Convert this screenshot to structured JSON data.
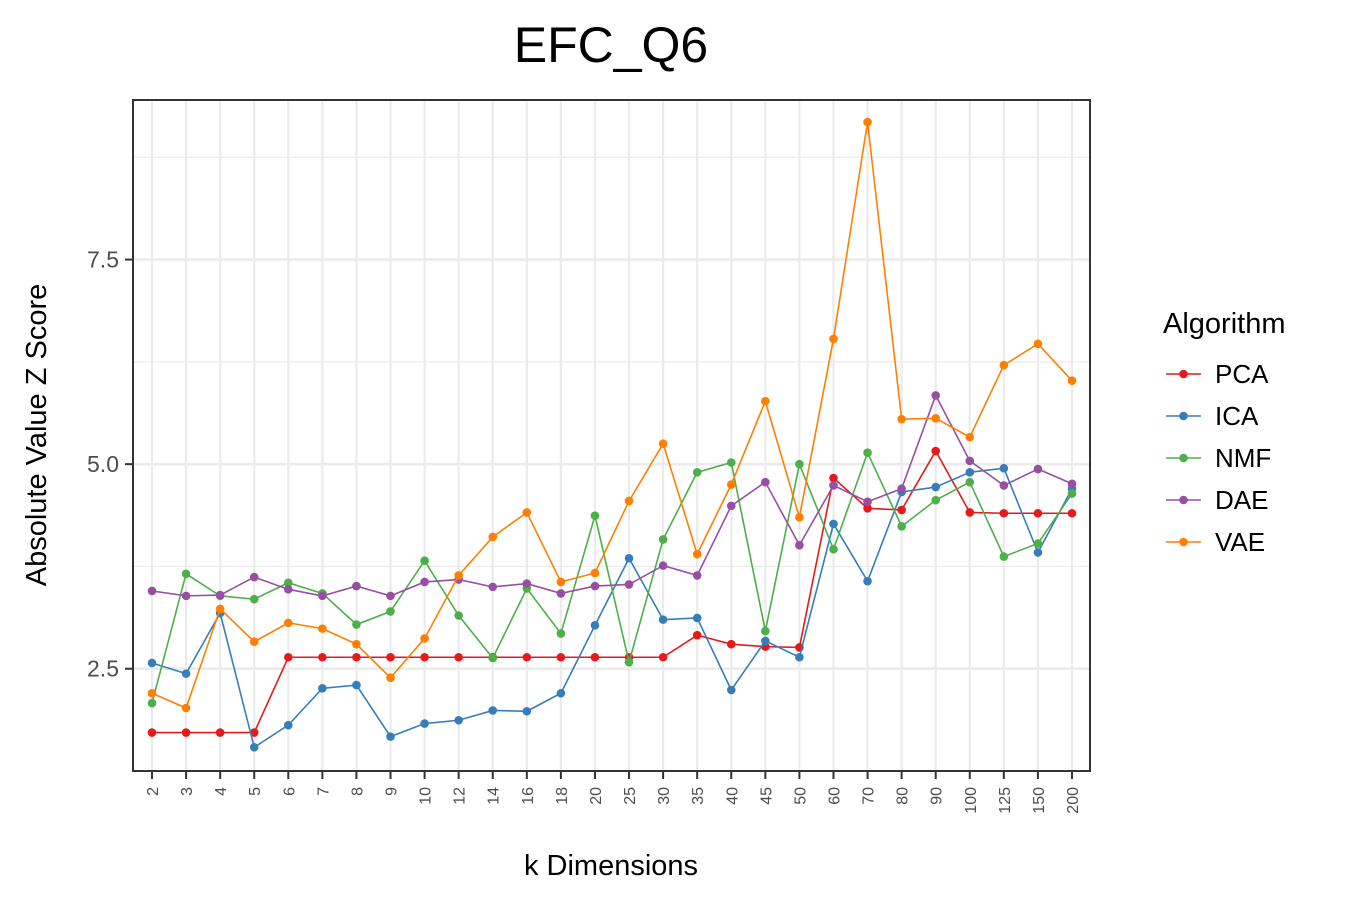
{
  "chart_data": {
    "type": "line",
    "title": "EFC_Q6",
    "xlabel": "k Dimensions",
    "ylabel": "Absolute Value Z Score",
    "categories": [
      "2",
      "3",
      "4",
      "5",
      "6",
      "7",
      "8",
      "9",
      "10",
      "12",
      "14",
      "16",
      "18",
      "20",
      "25",
      "30",
      "35",
      "40",
      "45",
      "50",
      "60",
      "70",
      "80",
      "90",
      "100",
      "125",
      "150",
      "200"
    ],
    "yticks": [
      "2.5",
      "5.0",
      "7.5"
    ],
    "ylim": [
      1.25,
      9.45
    ],
    "grid": true,
    "legend_title": "Algorithm",
    "legend_position": "right",
    "series": [
      {
        "name": "PCA",
        "color": "#E41A1C",
        "values": [
          1.72,
          1.72,
          1.72,
          1.72,
          2.64,
          2.64,
          2.64,
          2.64,
          2.64,
          2.64,
          2.64,
          2.64,
          2.64,
          2.64,
          2.64,
          2.64,
          2.91,
          2.8,
          2.77,
          2.76,
          4.83,
          4.46,
          4.44,
          5.16,
          4.41,
          4.4,
          4.4,
          4.4
        ]
      },
      {
        "name": "ICA",
        "color": "#377EB8",
        "values": [
          2.57,
          2.44,
          3.18,
          1.54,
          1.81,
          2.26,
          2.3,
          1.67,
          1.83,
          1.87,
          1.99,
          1.98,
          2.2,
          3.03,
          3.85,
          3.1,
          3.12,
          2.24,
          2.84,
          2.64,
          4.27,
          3.57,
          4.66,
          4.72,
          4.9,
          4.95,
          3.92,
          4.7
        ]
      },
      {
        "name": "NMF",
        "color": "#4DAF4A",
        "values": [
          2.08,
          3.66,
          3.39,
          3.35,
          3.55,
          3.42,
          3.04,
          3.2,
          3.82,
          3.15,
          2.63,
          3.48,
          2.93,
          4.37,
          2.58,
          4.08,
          4.9,
          5.02,
          2.96,
          5.0,
          3.96,
          5.14,
          4.24,
          4.56,
          4.78,
          3.87,
          4.03,
          4.64
        ]
      },
      {
        "name": "DAE",
        "color": "#984EA3",
        "values": [
          3.45,
          3.39,
          3.4,
          3.62,
          3.47,
          3.39,
          3.51,
          3.39,
          3.56,
          3.59,
          3.5,
          3.54,
          3.42,
          3.51,
          3.53,
          3.76,
          3.64,
          4.49,
          4.78,
          4.01,
          4.74,
          4.54,
          4.7,
          5.84,
          5.04,
          4.74,
          4.94,
          4.76
        ]
      },
      {
        "name": "VAE",
        "color": "#FF7F00",
        "values": [
          2.2,
          2.02,
          3.23,
          2.83,
          3.06,
          2.99,
          2.8,
          2.39,
          2.87,
          3.64,
          4.11,
          4.41,
          3.56,
          3.67,
          4.55,
          5.25,
          3.9,
          4.75,
          5.77,
          4.35,
          6.53,
          9.18,
          5.55,
          5.56,
          5.33,
          6.21,
          6.47,
          6.02
        ]
      }
    ]
  }
}
